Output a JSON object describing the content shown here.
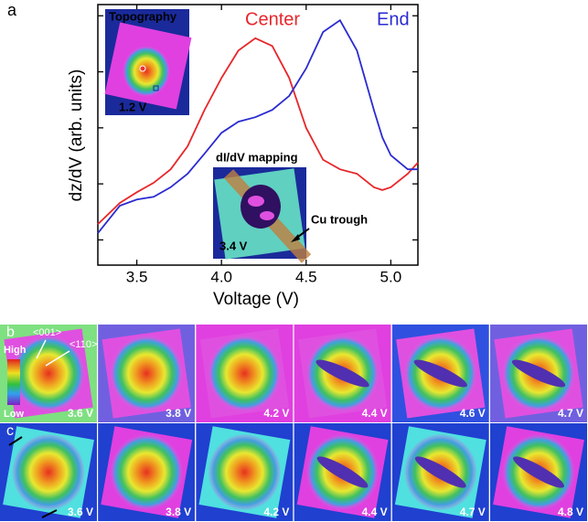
{
  "panel_a_label": "a",
  "chart_data": {
    "type": "line",
    "xlabel": "Voltage (V)",
    "ylabel": "dz/dV (arb. units)",
    "x": [
      3.27,
      3.4,
      3.5,
      3.6,
      3.7,
      3.8,
      3.9,
      4.0,
      4.1,
      4.2,
      4.3,
      4.4,
      4.5,
      4.6,
      4.7,
      4.8,
      4.9,
      4.95,
      5.0,
      5.1,
      5.16
    ],
    "series": [
      {
        "name": "Center",
        "color": "#e8262a",
        "values": [
          0.28,
          0.66,
          0.85,
          1.02,
          1.26,
          1.67,
          2.32,
          2.89,
          3.38,
          3.6,
          3.46,
          2.89,
          2.0,
          1.43,
          1.26,
          1.18,
          0.94,
          0.89,
          0.94,
          1.18,
          1.38
        ]
      },
      {
        "name": "End",
        "color": "#2b2bd0",
        "values": [
          0.12,
          0.61,
          0.72,
          0.77,
          0.94,
          1.18,
          1.54,
          1.91,
          2.11,
          2.19,
          2.32,
          2.57,
          3.06,
          3.71,
          3.92,
          3.38,
          2.32,
          1.83,
          1.51,
          1.26,
          1.26
        ]
      }
    ],
    "xlim": [
      3.27,
      5.16
    ],
    "xticks": [
      3.5,
      {
        "value": 4,
        "label": "4.0"
      },
      4.5,
      {
        "value": 5,
        "label": "5.0"
      }
    ],
    "ylim": [
      -0.45,
      4.2
    ],
    "yticks": [
      0,
      1,
      2,
      3,
      4
    ]
  },
  "insets": {
    "topography": {
      "title": "Topography",
      "voltage": "1.2 V"
    },
    "mapping": {
      "title": "dI/dV mapping",
      "voltage": "3.4 V",
      "arrow_label": "Cu trough"
    }
  },
  "panel_b": {
    "label": "b",
    "directions": [
      "<001>",
      "<110>"
    ],
    "scale": [
      "High",
      "Low"
    ],
    "voltages": [
      "3.6 V",
      "3.8 V",
      "4.2 V",
      "4.4 V",
      "4.6 V",
      "4.7 V"
    ]
  },
  "panel_c": {
    "label": "c",
    "voltages": [
      "3.6 V",
      "3.8 V",
      "4.2 V",
      "4.4 V",
      "4.7 V",
      "4.8 V"
    ]
  }
}
